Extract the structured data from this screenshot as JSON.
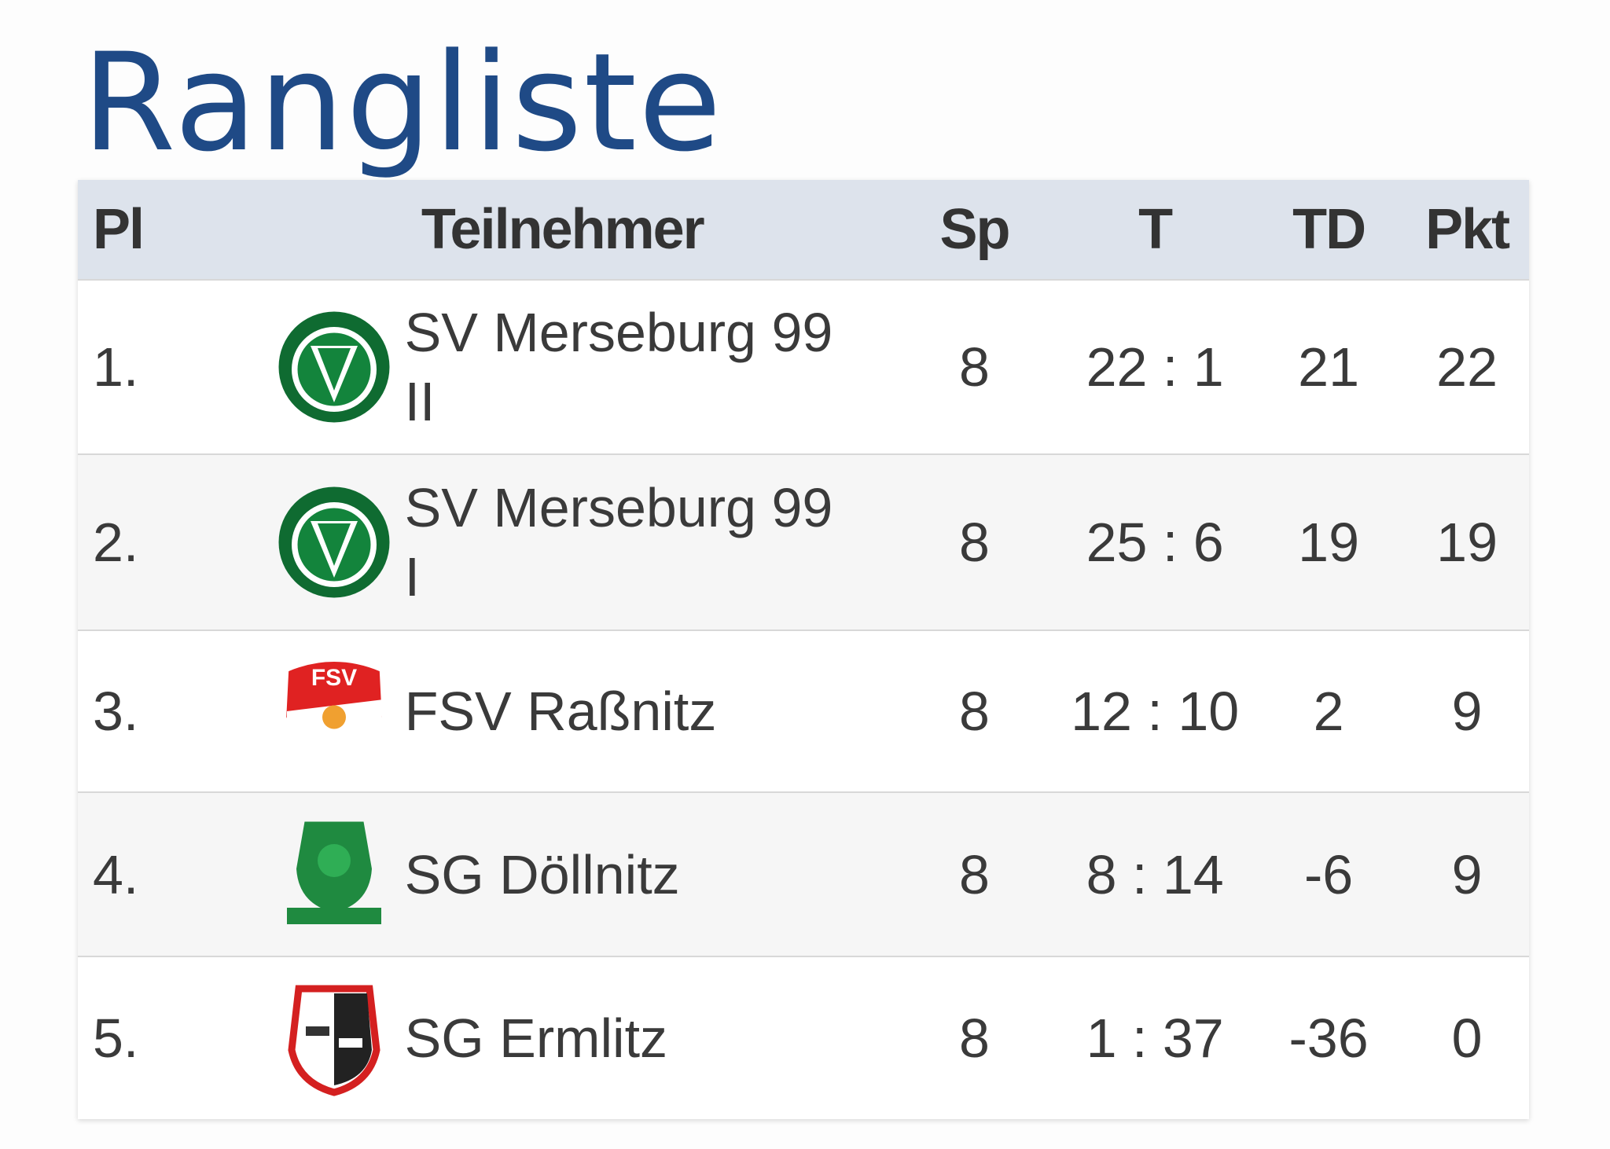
{
  "title": "Rangliste",
  "table": {
    "header": [
      "Pl",
      "Teilnehmer",
      "Sp",
      "T",
      "TD",
      "Pkt"
    ],
    "rows": [
      [
        "1.",
        "SV Merseburg 99 II",
        8,
        "22 : 1",
        21,
        22
      ],
      [
        "2.",
        "SV Merseburg 99 I",
        8,
        "25 : 6",
        19,
        19
      ],
      [
        "3.",
        "FSV Raßnitz",
        8,
        "12 : 10",
        2,
        9
      ],
      [
        "4.",
        "SG Döllnitz",
        8,
        "8 : 14",
        -6,
        9
      ],
      [
        "5.",
        "SG Ermlitz",
        8,
        "1 : 37",
        -36,
        0
      ]
    ]
  }
}
